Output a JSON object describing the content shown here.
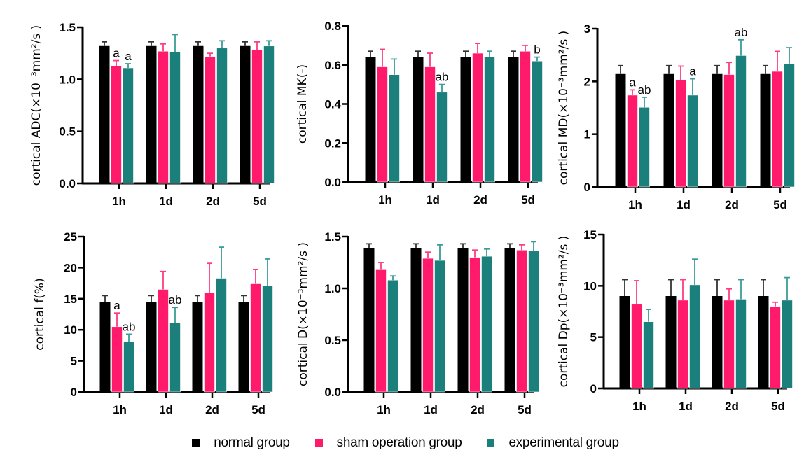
{
  "legend": {
    "items": [
      {
        "label": "normal group",
        "color": "#000000"
      },
      {
        "label": "sham operation group",
        "color": "#ff1a6c"
      },
      {
        "label": "experimental  group",
        "color": "#1b7f7c"
      }
    ]
  },
  "chart_data": [
    {
      "type": "bar",
      "title": "",
      "ylabel": "cortical ADC(×10⁻³mm²/s )",
      "xlabel": "",
      "categories": [
        "1h",
        "1d",
        "2d",
        "5d"
      ],
      "ylim": [
        0,
        1.5
      ],
      "yticks": [
        0.0,
        0.5,
        1.0,
        1.5
      ],
      "ytick_labels": [
        "0.0",
        "0.5",
        "1.0",
        "1.5"
      ],
      "grid": false,
      "legend": "bottom",
      "series": [
        {
          "name": "normal group",
          "values": [
            1.32,
            1.32,
            1.32,
            1.32
          ],
          "errors": [
            0.04,
            0.04,
            0.04,
            0.04
          ]
        },
        {
          "name": "sham operation group",
          "values": [
            1.13,
            1.27,
            1.22,
            1.28
          ],
          "errors": [
            0.05,
            0.07,
            0.03,
            0.08
          ]
        },
        {
          "name": "experimental  group",
          "values": [
            1.11,
            1.26,
            1.3,
            1.32
          ],
          "errors": [
            0.04,
            0.17,
            0.07,
            0.05
          ]
        }
      ],
      "annotations": [
        {
          "category": "1h",
          "series": 1,
          "text": "a"
        },
        {
          "category": "1h",
          "series": 2,
          "text": "a"
        }
      ]
    },
    {
      "type": "bar",
      "title": "",
      "ylabel": "cortical MK(-)",
      "xlabel": "",
      "categories": [
        "1h",
        "1d",
        "2d",
        "5d"
      ],
      "ylim": [
        0,
        0.8
      ],
      "yticks": [
        0.0,
        0.2,
        0.4,
        0.6,
        0.8
      ],
      "ytick_labels": [
        "0.0",
        "0.2",
        "0.4",
        "0.6",
        "0.8"
      ],
      "grid": false,
      "legend": "bottom",
      "series": [
        {
          "name": "normal group",
          "values": [
            0.64,
            0.64,
            0.64,
            0.64
          ],
          "errors": [
            0.03,
            0.03,
            0.03,
            0.03
          ]
        },
        {
          "name": "sham operation group",
          "values": [
            0.59,
            0.59,
            0.66,
            0.67
          ],
          "errors": [
            0.09,
            0.07,
            0.05,
            0.03
          ]
        },
        {
          "name": "experimental  group",
          "values": [
            0.55,
            0.46,
            0.64,
            0.62
          ],
          "errors": [
            0.08,
            0.04,
            0.03,
            0.02
          ]
        }
      ],
      "annotations": [
        {
          "category": "1d",
          "series": 2,
          "text": "ab"
        },
        {
          "category": "5d",
          "series": 2,
          "text": "b"
        }
      ]
    },
    {
      "type": "bar",
      "title": "",
      "ylabel": "cortical MD(×10⁻³mm²/s )",
      "xlabel": "",
      "categories": [
        "1h",
        "1d",
        "2d",
        "5d"
      ],
      "ylim": [
        0,
        3
      ],
      "yticks": [
        0,
        1,
        2,
        3
      ],
      "ytick_labels": [
        "0",
        "1",
        "2",
        "3"
      ],
      "grid": false,
      "legend": "bottom",
      "series": [
        {
          "name": "normal group",
          "values": [
            2.14,
            2.14,
            2.14,
            2.14
          ],
          "errors": [
            0.16,
            0.16,
            0.16,
            0.16
          ]
        },
        {
          "name": "sham operation group",
          "values": [
            1.74,
            2.03,
            2.13,
            2.19
          ],
          "errors": [
            0.1,
            0.26,
            0.23,
            0.38
          ]
        },
        {
          "name": "experimental  group",
          "values": [
            1.51,
            1.74,
            2.49,
            2.34
          ],
          "errors": [
            0.19,
            0.31,
            0.3,
            0.3
          ]
        }
      ],
      "annotations": [
        {
          "category": "1h",
          "series": 1,
          "text": "a"
        },
        {
          "category": "1h",
          "series": 2,
          "text": "ab"
        },
        {
          "category": "1d",
          "series": 2,
          "text": "a"
        },
        {
          "category": "2d",
          "series": 2,
          "text": "ab"
        }
      ]
    },
    {
      "type": "bar",
      "title": "",
      "ylabel": "cortical f(%)",
      "xlabel": "",
      "categories": [
        "1h",
        "1d",
        "2d",
        "5d"
      ],
      "ylim": [
        0,
        25
      ],
      "yticks": [
        0,
        5,
        10,
        15,
        20,
        25
      ],
      "ytick_labels": [
        "0",
        "5",
        "10",
        "15",
        "20",
        "25"
      ],
      "grid": false,
      "legend": "bottom",
      "series": [
        {
          "name": "normal group",
          "values": [
            14.5,
            14.5,
            14.5,
            14.5
          ],
          "errors": [
            1.0,
            1.0,
            1.0,
            1.0
          ]
        },
        {
          "name": "sham operation group",
          "values": [
            10.5,
            16.5,
            16.0,
            17.4
          ],
          "errors": [
            2.2,
            2.9,
            4.7,
            2.3
          ]
        },
        {
          "name": "experimental  group",
          "values": [
            8.1,
            11.1,
            18.3,
            17.1
          ],
          "errors": [
            1.2,
            2.5,
            5.0,
            4.3
          ]
        }
      ],
      "annotations": [
        {
          "category": "1h",
          "series": 1,
          "text": "a"
        },
        {
          "category": "1h",
          "series": 2,
          "text": "ab"
        },
        {
          "category": "1d",
          "series": 2,
          "text": "ab"
        }
      ]
    },
    {
      "type": "bar",
      "title": "",
      "ylabel": "cortical D(×10⁻³mm²/s )",
      "xlabel": "",
      "categories": [
        "1h",
        "1d",
        "2d",
        "5d"
      ],
      "ylim": [
        0,
        1.5
      ],
      "yticks": [
        0.0,
        0.5,
        1.0,
        1.5
      ],
      "ytick_labels": [
        "0.0",
        "0.5",
        "1.0",
        "1.5"
      ],
      "grid": false,
      "legend": "bottom",
      "series": [
        {
          "name": "normal group",
          "values": [
            1.39,
            1.39,
            1.39,
            1.39
          ],
          "errors": [
            0.04,
            0.04,
            0.04,
            0.04
          ]
        },
        {
          "name": "sham operation group",
          "values": [
            1.18,
            1.29,
            1.3,
            1.37
          ],
          "errors": [
            0.07,
            0.06,
            0.07,
            0.05
          ]
        },
        {
          "name": "experimental  group",
          "values": [
            1.08,
            1.27,
            1.31,
            1.36
          ],
          "errors": [
            0.04,
            0.15,
            0.07,
            0.09
          ]
        }
      ],
      "annotations": []
    },
    {
      "type": "bar",
      "title": "",
      "ylabel": "cortical Dp(×10⁻³mm²/s )",
      "xlabel": "",
      "categories": [
        "1h",
        "1d",
        "2d",
        "5d"
      ],
      "ylim": [
        0,
        15
      ],
      "yticks": [
        0,
        5,
        10,
        15
      ],
      "ytick_labels": [
        "0",
        "5",
        "10",
        "15"
      ],
      "grid": false,
      "legend": "bottom",
      "series": [
        {
          "name": "normal group",
          "values": [
            9.0,
            9.0,
            9.0,
            9.0
          ],
          "errors": [
            1.6,
            1.6,
            1.6,
            1.6
          ]
        },
        {
          "name": "sham operation group",
          "values": [
            8.2,
            8.6,
            8.6,
            8.0
          ],
          "errors": [
            2.3,
            2.0,
            1.1,
            0.4
          ]
        },
        {
          "name": "experimental  group",
          "values": [
            6.5,
            10.1,
            8.7,
            8.6
          ],
          "errors": [
            1.2,
            2.5,
            1.9,
            2.2
          ]
        }
      ],
      "annotations": []
    }
  ]
}
